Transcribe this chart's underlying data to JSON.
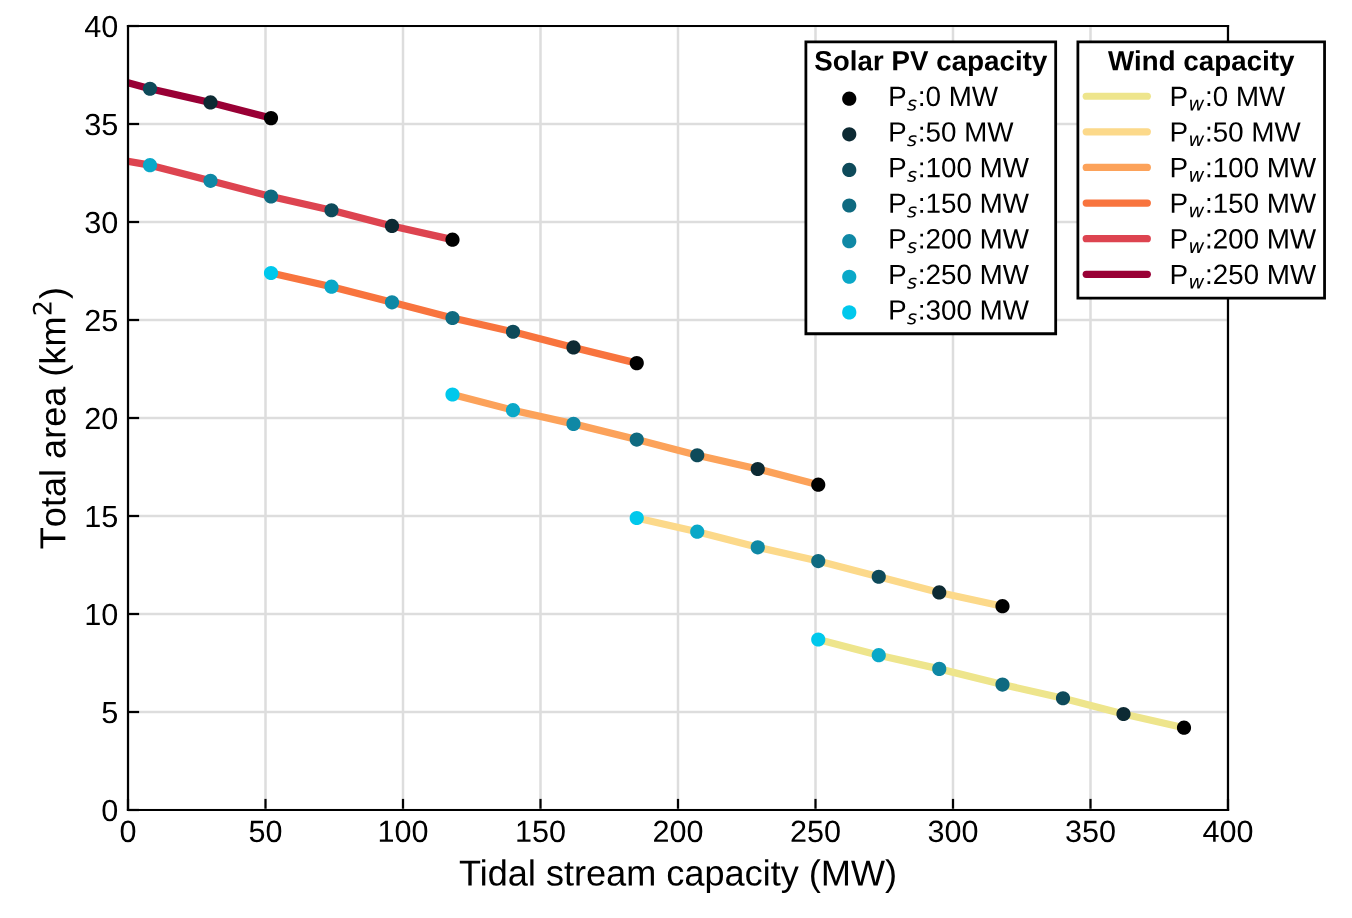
{
  "chart_data": {
    "type": "line",
    "xlabel": "Tidal stream capacity (MW)",
    "ylabel": "Total area (km$^{2}$)",
    "xlim": [
      0,
      400
    ],
    "xticks": [
      0,
      50,
      100,
      150,
      200,
      250,
      300,
      350,
      400
    ],
    "ylim": [
      0,
      40
    ],
    "yticks": [
      0,
      5,
      10,
      15,
      20,
      25,
      30,
      35,
      40
    ],
    "grid": true,
    "legend": "top right",
    "legend_title": [
      "Solar PV capacity",
      "Wind capacity"
    ],
    "series": [
      {
        "name": "P$_{w}$:0 MW",
        "color": "#eee58c",
        "x": [
          251,
          273,
          295,
          318,
          340,
          362,
          384
        ],
        "values": [
          8.7,
          7.9,
          7.2,
          6.4,
          5.7,
          4.9,
          4.2
        ]
      },
      {
        "name": "P$_{w}$:50 MW",
        "color": "#fcd98a",
        "x": [
          185,
          207,
          229,
          251,
          273,
          295,
          318
        ],
        "values": [
          14.9,
          14.2,
          13.4,
          12.7,
          11.9,
          11.1,
          10.4
        ]
      },
      {
        "name": "P$_{w}$:100 MW",
        "color": "#fca25a",
        "x": [
          118,
          140,
          162,
          185,
          207,
          229,
          251
        ],
        "values": [
          21.2,
          20.4,
          19.7,
          18.9,
          18.1,
          17.4,
          16.6
        ]
      },
      {
        "name": "P$_{w}$:150 MW",
        "color": "#f8743e",
        "x": [
          52,
          74,
          96,
          118,
          140,
          162,
          185
        ],
        "values": [
          27.4,
          26.7,
          25.9,
          25.1,
          24.4,
          23.6,
          22.8
        ]
      },
      {
        "name": "P$_{w}$:200 MW",
        "color": "#dd4450",
        "x": [
          0,
          8,
          30,
          52,
          74,
          96,
          118
        ],
        "values": [
          33.1,
          32.9,
          32.1,
          31.3,
          30.6,
          29.8,
          29.1
        ]
      },
      {
        "name": "P$_{w}$:250 MW",
        "color": "#990035",
        "x": [
          0,
          8,
          30,
          52
        ],
        "values": [
          37.1,
          36.8,
          36.1,
          35.3
        ]
      },
      {
        "type": "scatter",
        "name": "P$_{s}$:0 MW",
        "color": "#000000",
        "x": [
          52,
          118,
          185,
          251,
          318,
          384
        ],
        "values": [
          35.3,
          29.1,
          22.8,
          16.6,
          10.4,
          4.2
        ]
      },
      {
        "type": "scatter",
        "name": "P$_{s}$:50 MW",
        "color": "#0d2a33",
        "x": [
          30,
          96,
          162,
          229,
          295,
          362
        ],
        "values": [
          36.1,
          29.8,
          23.6,
          17.4,
          11.1,
          4.9
        ]
      },
      {
        "type": "scatter",
        "name": "P$_{s}$:100 MW",
        "color": "#0e4a5a",
        "x": [
          8,
          74,
          140,
          207,
          273,
          340
        ],
        "values": [
          36.8,
          30.6,
          24.4,
          18.1,
          11.9,
          5.7
        ]
      },
      {
        "type": "scatter",
        "name": "P$_{s}$:150 MW",
        "color": "#0f6a80",
        "x": [
          52,
          118,
          185,
          251,
          318
        ],
        "values": [
          31.3,
          25.1,
          18.9,
          12.7,
          6.4
        ]
      },
      {
        "type": "scatter",
        "name": "P$_{s}$:200 MW",
        "color": "#0f88a5",
        "x": [
          30,
          96,
          162,
          229,
          295
        ],
        "values": [
          32.1,
          25.9,
          19.7,
          13.4,
          7.2
        ]
      },
      {
        "type": "scatter",
        "name": "P$_{s}$:250 MW",
        "color": "#0aa8c8",
        "x": [
          8,
          74,
          140,
          207,
          273
        ],
        "values": [
          32.9,
          26.7,
          20.4,
          14.2,
          7.9
        ]
      },
      {
        "type": "scatter",
        "name": "P$_{s}$:300 MW",
        "color": "#00c8ec",
        "x": [
          52,
          118,
          185,
          251
        ],
        "values": [
          27.4,
          21.2,
          14.9,
          8.7
        ]
      }
    ]
  }
}
